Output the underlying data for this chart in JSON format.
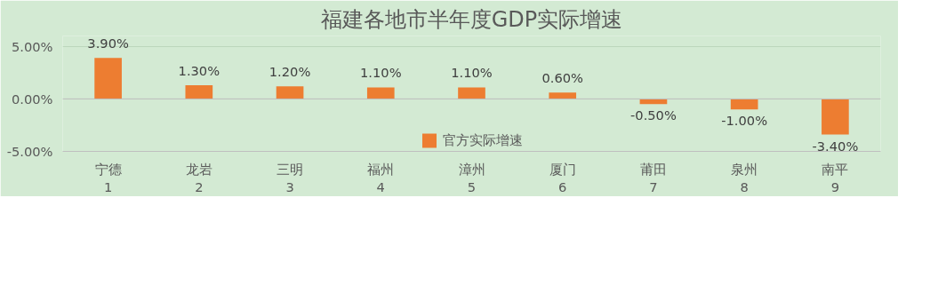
{
  "chart_data": {
    "type": "bar",
    "title": "福建各地市半年度GDP实际增速",
    "categories": [
      "宁德\n1",
      "龙岩\n2",
      "三明\n3",
      "福州\n4",
      "漳州\n5",
      "厦门\n6",
      "莆田\n7",
      "泉州\n8",
      "南平\n9"
    ],
    "series": [
      {
        "name": "官方实际增速",
        "color": "#ed7d31",
        "values": [
          3.9,
          1.3,
          1.2,
          1.1,
          1.1,
          0.6,
          -0.5,
          -1.0,
          -3.4
        ],
        "value_labels": [
          "3.90%",
          "1.30%",
          "1.20%",
          "1.10%",
          "1.10%",
          "0.60%",
          "-0.50%",
          "-1.00%",
          "-3.40%"
        ]
      }
    ],
    "ylim": [
      -5,
      6
    ],
    "yticks": [
      {
        "value": -5,
        "label": "-5.00%"
      },
      {
        "value": 0,
        "label": "0.00%"
      },
      {
        "value": 5,
        "label": "5.00%"
      }
    ],
    "grid": "y",
    "legend": "bottom"
  }
}
